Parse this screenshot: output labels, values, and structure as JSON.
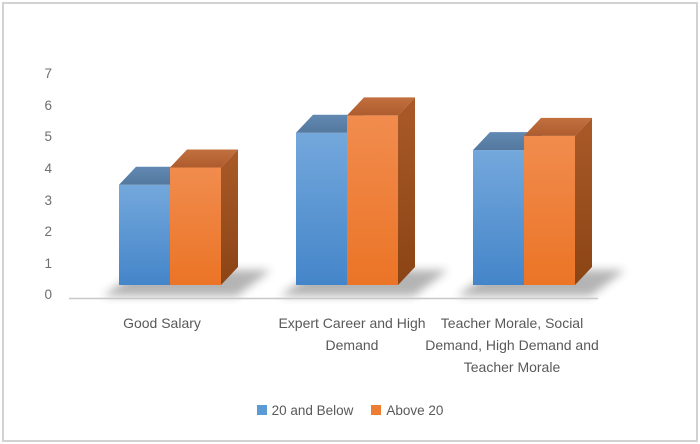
{
  "figure": {
    "background": "#FFFFFF",
    "border_color": "#D2D2D2"
  },
  "chart_data": {
    "type": "bar",
    "subtype": "3d-clustered-column",
    "title": "",
    "xlabel": "",
    "ylabel": "",
    "categories": [
      "Good Salary",
      "Expert Career and High Demand",
      "Teacher Morale, Social Demand, High Demand and Teacher Morale"
    ],
    "category_label_lines": [
      [
        "Good Salary"
      ],
      [
        "Expert Career and High",
        "Demand"
      ],
      [
        "Teacher Morale, Social",
        "Demand, High Demand and",
        "Teacher Morale"
      ]
    ],
    "series": [
      {
        "name": "20 and Below",
        "color": "#5B9BD5",
        "values": [
          3.5,
          5.15,
          4.6
        ]
      },
      {
        "name": "Above 20",
        "color": "#ED7D31",
        "values": [
          4.05,
          5.7,
          5.05
        ]
      }
    ],
    "y_ticks": [
      0,
      1,
      2,
      3,
      4,
      5,
      6,
      7
    ],
    "ylim": [
      0,
      7
    ],
    "grid": false,
    "legend_position": "bottom",
    "axis_text_color": "#6E6E6E",
    "label_text_color": "#595959"
  }
}
